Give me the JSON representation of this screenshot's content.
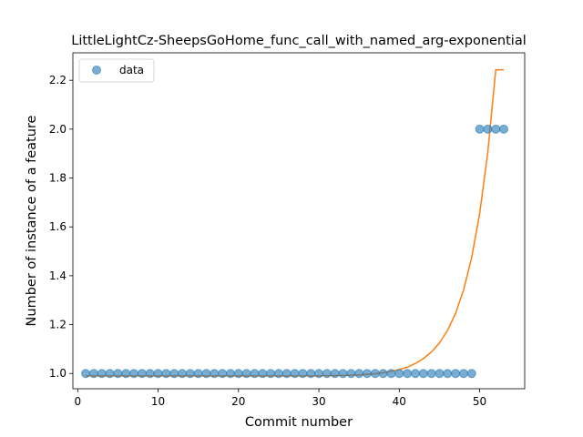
{
  "chart_data": {
    "type": "scatter",
    "title": "LittleLightCz-SheepsGoHome_func_call_with_named_arg-exponential",
    "xlabel": "Commit number",
    "ylabel": "Number of instance of a feature",
    "xlim": [
      -0.6,
      55.6
    ],
    "ylim": [
      0.9375,
      2.3125
    ],
    "xticks": [
      0,
      10,
      20,
      30,
      40,
      50
    ],
    "yticks": [
      1.0,
      1.2,
      1.4,
      1.6,
      1.8,
      2.0,
      2.2
    ],
    "grid": false,
    "legend": {
      "position": "upper-left",
      "entries": [
        "data"
      ]
    },
    "colors": {
      "data": "#1f77b4",
      "fit": "#ff7f0e"
    },
    "series": [
      {
        "name": "data",
        "kind": "points",
        "x": [
          1,
          2,
          3,
          4,
          5,
          6,
          7,
          8,
          9,
          10,
          11,
          12,
          13,
          14,
          15,
          16,
          17,
          18,
          19,
          20,
          21,
          22,
          23,
          24,
          25,
          26,
          27,
          28,
          29,
          30,
          31,
          32,
          33,
          34,
          35,
          36,
          37,
          38,
          39,
          40,
          41,
          42,
          43,
          44,
          45,
          46,
          47,
          48,
          49,
          50,
          51,
          52,
          53
        ],
        "y": [
          1,
          1,
          1,
          1,
          1,
          1,
          1,
          1,
          1,
          1,
          1,
          1,
          1,
          1,
          1,
          1,
          1,
          1,
          1,
          1,
          1,
          1,
          1,
          1,
          1,
          1,
          1,
          1,
          1,
          1,
          1,
          1,
          1,
          1,
          1,
          1,
          1,
          1,
          1,
          1,
          1,
          1,
          1,
          1,
          1,
          1,
          1,
          1,
          1,
          2,
          2,
          2,
          2
        ]
      },
      {
        "kind": "fit-line",
        "x": [
          1,
          2,
          3,
          4,
          5,
          6,
          7,
          8,
          9,
          10,
          11,
          12,
          13,
          14,
          15,
          16,
          17,
          18,
          19,
          20,
          21,
          22,
          23,
          24,
          25,
          26,
          27,
          28,
          29,
          30,
          31,
          32,
          33,
          34,
          35,
          36,
          37,
          38,
          39,
          40,
          41,
          42,
          43,
          44,
          45,
          46,
          47,
          48,
          49,
          50,
          51,
          52,
          53
        ],
        "y": [
          0.99,
          0.99,
          0.99,
          0.99,
          0.99,
          0.99,
          0.99,
          0.99,
          0.99,
          0.99,
          0.99,
          0.99,
          0.99,
          0.99,
          0.99,
          0.99,
          0.99,
          0.99,
          0.99,
          0.99,
          0.99,
          0.99,
          0.99,
          0.99,
          0.99,
          0.99,
          0.99,
          0.99,
          0.99,
          0.99,
          0.991,
          0.991,
          0.992,
          0.993,
          0.994,
          0.996,
          0.999,
          1.003,
          1.009,
          1.016,
          1.026,
          1.041,
          1.061,
          1.088,
          1.125,
          1.176,
          1.246,
          1.342,
          1.474,
          1.655,
          1.903,
          2.243,
          2.243
        ]
      }
    ]
  }
}
